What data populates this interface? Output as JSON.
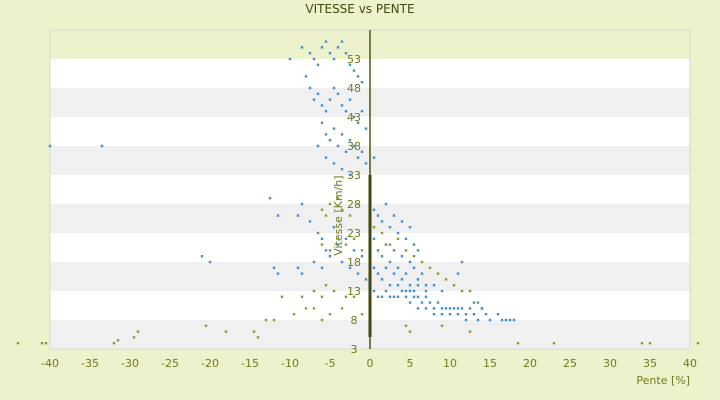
{
  "chart_data": {
    "type": "scatter",
    "title": "VITESSE vs PENTE",
    "xlabel": "Pente [%]",
    "ylabel": "Vitesse [Km/h]",
    "xlim": [
      -40,
      40
    ],
    "ylim": [
      3,
      58
    ],
    "x_ticks": [
      "-40",
      "-35",
      "-30",
      "-25",
      "-20",
      "-15",
      "-10",
      "-5",
      "0",
      "5",
      "10",
      "15",
      "20",
      "25",
      "30",
      "35",
      "40"
    ],
    "y_ticks": [
      "3",
      "8",
      "13",
      "18",
      "23",
      "28",
      "33",
      "38",
      "43",
      "48",
      "53"
    ],
    "grid": "horizontal bands",
    "legend": "none",
    "colors": {
      "background": "#edf2cd",
      "band_light": "#ffffff",
      "band_dark": "#f0f0f0",
      "text": "#6b7a1d",
      "axis": "#4a5a10",
      "series_blue": "#3b8fd6",
      "series_olive": "#8f9b2c"
    },
    "series": [
      {
        "name": "",
        "color": "#3b8fd6",
        "points": [
          [
            -40,
            38
          ],
          [
            -33.5,
            38
          ],
          [
            -10,
            53
          ],
          [
            -8.5,
            55
          ],
          [
            -7.5,
            54
          ],
          [
            -7,
            53
          ],
          [
            -6.5,
            52
          ],
          [
            -6,
            55
          ],
          [
            -5.5,
            56
          ],
          [
            -5,
            54
          ],
          [
            -4.5,
            53
          ],
          [
            -4,
            55
          ],
          [
            -3.5,
            56
          ],
          [
            -3,
            54
          ],
          [
            -2.5,
            52
          ],
          [
            -2,
            51
          ],
          [
            -1.5,
            50
          ],
          [
            -1,
            49
          ],
          [
            -8,
            50
          ],
          [
            -7.5,
            48
          ],
          [
            -7,
            46
          ],
          [
            -6.5,
            47
          ],
          [
            -6,
            45
          ],
          [
            -5.5,
            44
          ],
          [
            -5,
            46
          ],
          [
            -4.5,
            48
          ],
          [
            -4,
            47
          ],
          [
            -3.5,
            45
          ],
          [
            -3,
            44
          ],
          [
            -2.5,
            46
          ],
          [
            -2,
            43
          ],
          [
            -1.5,
            42
          ],
          [
            -1,
            44
          ],
          [
            -0.5,
            41
          ],
          [
            -6,
            42
          ],
          [
            -5.5,
            40
          ],
          [
            -5,
            39
          ],
          [
            -4.5,
            41
          ],
          [
            -4,
            38
          ],
          [
            -3.5,
            40
          ],
          [
            -3,
            37
          ],
          [
            -2.5,
            39
          ],
          [
            -2,
            38
          ],
          [
            -1.5,
            36
          ],
          [
            -1,
            37
          ],
          [
            -0.5,
            35
          ],
          [
            0.5,
            36
          ],
          [
            -6.5,
            38
          ],
          [
            -5.5,
            36
          ],
          [
            -4.5,
            35
          ],
          [
            -3.5,
            34
          ],
          [
            -2.5,
            33
          ],
          [
            -9,
            26
          ],
          [
            -8.5,
            28
          ],
          [
            -7.5,
            25
          ],
          [
            -6.5,
            23
          ],
          [
            -6,
            22
          ],
          [
            -5.5,
            20
          ],
          [
            -5,
            19
          ],
          [
            -4.5,
            24
          ],
          [
            -4,
            21
          ],
          [
            -3.5,
            18
          ],
          [
            -3,
            22
          ],
          [
            -2.5,
            17
          ],
          [
            -2,
            20
          ],
          [
            -1.5,
            16
          ],
          [
            -1,
            19
          ],
          [
            -0.5,
            15
          ],
          [
            -12.5,
            29
          ],
          [
            -11.5,
            26
          ],
          [
            -21,
            19
          ],
          [
            -20,
            18
          ],
          [
            -12,
            17
          ],
          [
            -11.5,
            16
          ],
          [
            -9,
            17
          ],
          [
            -8.5,
            16
          ],
          [
            -7,
            18
          ],
          [
            -6,
            17
          ],
          [
            0.5,
            27
          ],
          [
            1,
            26
          ],
          [
            1.5,
            25
          ],
          [
            2,
            28
          ],
          [
            2.5,
            24
          ],
          [
            3,
            26
          ],
          [
            3.5,
            23
          ],
          [
            4,
            25
          ],
          [
            4.5,
            22
          ],
          [
            5,
            24
          ],
          [
            5.5,
            21
          ],
          [
            6,
            20
          ],
          [
            0.5,
            22
          ],
          [
            1,
            20
          ],
          [
            1.5,
            19
          ],
          [
            2,
            21
          ],
          [
            2.5,
            18
          ],
          [
            3,
            20
          ],
          [
            3.5,
            17
          ],
          [
            4,
            19
          ],
          [
            4.5,
            16
          ],
          [
            5,
            18
          ],
          [
            5.5,
            17
          ],
          [
            6,
            15
          ],
          [
            6.5,
            16
          ],
          [
            7,
            14
          ],
          [
            0.5,
            17
          ],
          [
            1,
            16
          ],
          [
            1.5,
            15
          ],
          [
            2,
            17
          ],
          [
            2.5,
            14
          ],
          [
            3,
            16
          ],
          [
            3.5,
            14
          ],
          [
            4,
            15
          ],
          [
            4.5,
            13
          ],
          [
            5,
            14
          ],
          [
            5.5,
            13
          ],
          [
            6,
            14
          ],
          [
            7,
            13
          ],
          [
            8,
            14
          ],
          [
            9,
            13
          ],
          [
            11,
            16
          ],
          [
            11.5,
            18
          ],
          [
            0.5,
            13
          ],
          [
            1,
            12
          ],
          [
            1.5,
            12
          ],
          [
            2,
            13
          ],
          [
            2.5,
            12
          ],
          [
            3,
            12
          ],
          [
            3.5,
            12
          ],
          [
            4,
            13
          ],
          [
            4.5,
            12
          ],
          [
            5,
            13
          ],
          [
            5.5,
            12
          ],
          [
            6,
            12
          ],
          [
            6.5,
            11
          ],
          [
            7,
            12
          ],
          [
            7.5,
            11
          ],
          [
            8,
            10
          ],
          [
            8.5,
            11
          ],
          [
            9,
            10
          ],
          [
            9.5,
            10
          ],
          [
            10,
            9
          ],
          [
            10.5,
            10
          ],
          [
            11,
            9
          ],
          [
            11.5,
            10
          ],
          [
            12,
            9
          ],
          [
            12.5,
            10
          ],
          [
            13,
            9
          ],
          [
            13.5,
            8
          ],
          [
            14,
            10
          ],
          [
            14.5,
            9
          ],
          [
            15,
            8
          ],
          [
            16,
            9
          ],
          [
            16.5,
            8
          ],
          [
            17,
            8
          ],
          [
            17.5,
            8
          ],
          [
            18,
            8
          ],
          [
            5,
            11
          ],
          [
            6,
            10
          ],
          [
            7,
            10
          ],
          [
            8,
            9
          ],
          [
            9,
            9
          ],
          [
            10,
            10
          ],
          [
            11,
            10
          ],
          [
            12,
            8
          ],
          [
            13,
            11
          ],
          [
            14,
            10
          ]
        ]
      },
      {
        "name": "",
        "color": "#8f9b2c",
        "points": [
          [
            -44,
            4
          ],
          [
            -41,
            4
          ],
          [
            -40.5,
            4
          ],
          [
            -32,
            4
          ],
          [
            -31.5,
            4.5
          ],
          [
            -29.5,
            5
          ],
          [
            -29,
            6
          ],
          [
            -20.5,
            7
          ],
          [
            -18,
            6
          ],
          [
            -14.5,
            6
          ],
          [
            -14,
            5
          ],
          [
            -13,
            8
          ],
          [
            -12,
            8
          ],
          [
            -9.5,
            9
          ],
          [
            -8,
            10
          ],
          [
            -7,
            10
          ],
          [
            -6,
            8
          ],
          [
            -5,
            9
          ],
          [
            -3.5,
            10
          ],
          [
            -1,
            9
          ],
          [
            -11,
            12
          ],
          [
            -8.5,
            12
          ],
          [
            -7,
            13
          ],
          [
            -6,
            12
          ],
          [
            -5.5,
            14
          ],
          [
            -4.5,
            13
          ],
          [
            -3,
            12
          ],
          [
            -2,
            12
          ],
          [
            -6,
            27
          ],
          [
            -5.5,
            26
          ],
          [
            -5,
            28
          ],
          [
            -4,
            29
          ],
          [
            -3.5,
            27
          ],
          [
            -2.5,
            26
          ],
          [
            -1.5,
            28
          ],
          [
            -6,
            21
          ],
          [
            -5,
            20
          ],
          [
            -4,
            22
          ],
          [
            -3,
            21
          ],
          [
            -2,
            22
          ],
          [
            -1,
            20
          ],
          [
            0.5,
            24
          ],
          [
            1.5,
            23
          ],
          [
            2.5,
            21
          ],
          [
            3.5,
            22
          ],
          [
            4.5,
            20
          ],
          [
            5.5,
            19
          ],
          [
            6.5,
            18
          ],
          [
            7.5,
            17
          ],
          [
            8.5,
            16
          ],
          [
            9.5,
            15
          ],
          [
            10.5,
            14
          ],
          [
            11.5,
            13
          ],
          [
            12.5,
            13
          ],
          [
            13.5,
            11
          ],
          [
            4.5,
            7
          ],
          [
            5,
            6
          ],
          [
            9,
            7
          ],
          [
            12.5,
            6
          ],
          [
            18.5,
            4
          ],
          [
            23,
            4
          ],
          [
            34,
            4
          ],
          [
            35,
            4
          ],
          [
            41,
            4
          ]
        ]
      }
    ]
  }
}
